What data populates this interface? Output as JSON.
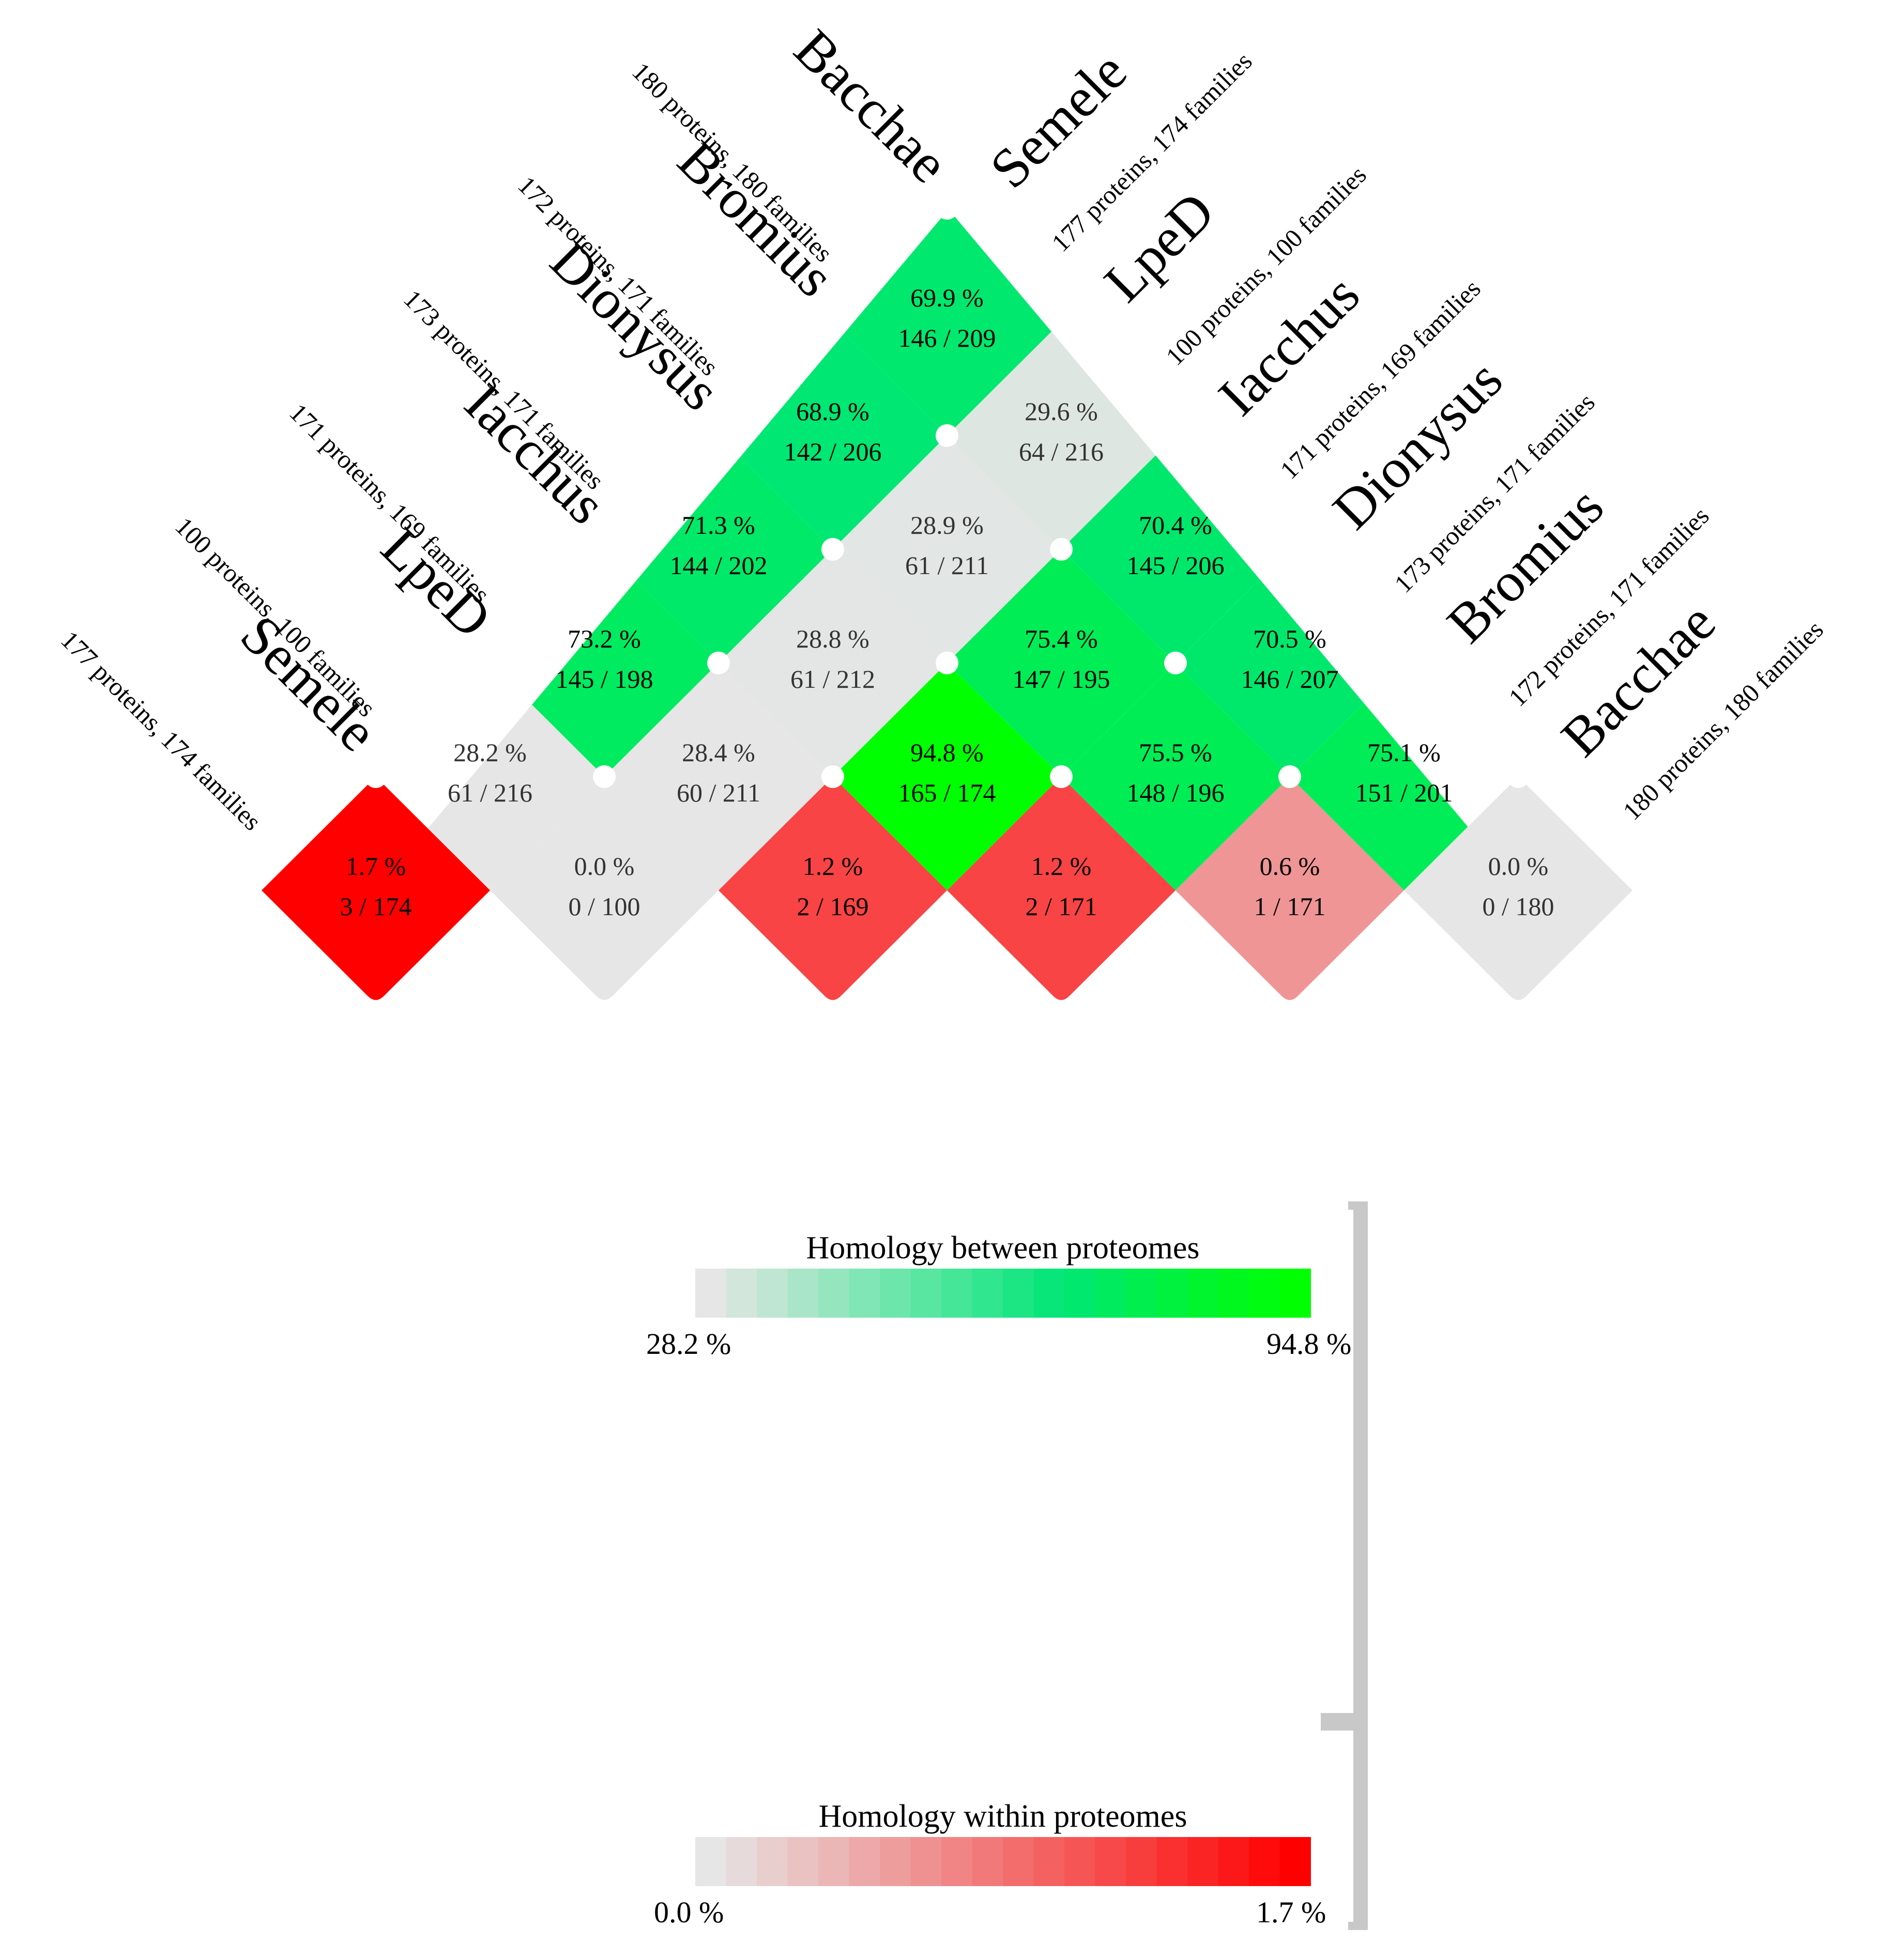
{
  "chart_data": {
    "type": "heatmap",
    "layout": "triangular-diamond-matrix",
    "taxa": [
      {
        "name": "Semele",
        "stats": "177 proteins, 174 families"
      },
      {
        "name": "LpeD",
        "stats": "100 proteins, 100 families"
      },
      {
        "name": "Iacchus",
        "stats": "171 proteins, 169 families"
      },
      {
        "name": "Dionysus",
        "stats": "173 proteins, 171 families"
      },
      {
        "name": "Bromius",
        "stats": "172 proteins, 171 families"
      },
      {
        "name": "Bacchae",
        "stats": "180 proteins, 180 families"
      }
    ],
    "within": [
      {
        "taxon": "Semele",
        "pct": "1.7 %",
        "frac": "3 / 174",
        "value": 1.7
      },
      {
        "taxon": "LpeD",
        "pct": "0.0 %",
        "frac": "0 / 100",
        "value": 0.0
      },
      {
        "taxon": "Iacchus",
        "pct": "1.2 %",
        "frac": "2 / 169",
        "value": 1.2
      },
      {
        "taxon": "Dionysus",
        "pct": "1.2 %",
        "frac": "2 / 171",
        "value": 1.2
      },
      {
        "taxon": "Bromius",
        "pct": "0.6 %",
        "frac": "1 / 171",
        "value": 0.6
      },
      {
        "taxon": "Bacchae",
        "pct": "0.0 %",
        "frac": "0 / 180",
        "value": 0.0
      }
    ],
    "between": [
      {
        "a": "Semele",
        "b": "LpeD",
        "pct": "28.2 %",
        "frac": "61 / 216",
        "value": 28.2
      },
      {
        "a": "Semele",
        "b": "Iacchus",
        "pct": "73.2 %",
        "frac": "145 / 198",
        "value": 73.2
      },
      {
        "a": "Semele",
        "b": "Dionysus",
        "pct": "71.3 %",
        "frac": "144 / 202",
        "value": 71.3
      },
      {
        "a": "Semele",
        "b": "Bromius",
        "pct": "68.9 %",
        "frac": "142 / 206",
        "value": 68.9
      },
      {
        "a": "Semele",
        "b": "Bacchae",
        "pct": "69.9 %",
        "frac": "146 / 209",
        "value": 69.9
      },
      {
        "a": "LpeD",
        "b": "Iacchus",
        "pct": "28.4 %",
        "frac": "60 / 211",
        "value": 28.4
      },
      {
        "a": "LpeD",
        "b": "Dionysus",
        "pct": "28.8 %",
        "frac": "61 / 212",
        "value": 28.8
      },
      {
        "a": "LpeD",
        "b": "Bromius",
        "pct": "28.9 %",
        "frac": "61 / 211",
        "value": 28.9
      },
      {
        "a": "LpeD",
        "b": "Bacchae",
        "pct": "29.6 %",
        "frac": "64 / 216",
        "value": 29.6
      },
      {
        "a": "Iacchus",
        "b": "Dionysus",
        "pct": "94.8 %",
        "frac": "165 / 174",
        "value": 94.8
      },
      {
        "a": "Iacchus",
        "b": "Bromius",
        "pct": "75.4 %",
        "frac": "147 / 195",
        "value": 75.4
      },
      {
        "a": "Iacchus",
        "b": "Bacchae",
        "pct": "70.4 %",
        "frac": "145 / 206",
        "value": 70.4
      },
      {
        "a": "Dionysus",
        "b": "Bromius",
        "pct": "75.5 %",
        "frac": "148 / 196",
        "value": 75.5
      },
      {
        "a": "Dionysus",
        "b": "Bacchae",
        "pct": "70.5 %",
        "frac": "146 / 207",
        "value": 70.5
      },
      {
        "a": "Bromius",
        "b": "Bacchae",
        "pct": "75.1 %",
        "frac": "151 / 201",
        "value": 75.1
      }
    ],
    "legends": [
      {
        "title": "Homology between proteomes",
        "min_label": "28.2 %",
        "max_label": "94.8 %",
        "min": 28.2,
        "max": 94.8,
        "color_low": "#e6e6e6",
        "color_mid": "#00e676",
        "color_high": "#00ff00"
      },
      {
        "title": "Homology within proteomes",
        "min_label": "0.0 %",
        "max_label": "1.7 %",
        "min": 0.0,
        "max": 1.7,
        "color_low": "#e6e6e6",
        "color_high": "#ff0000"
      }
    ],
    "colors": {
      "bracket": "#c8c8c8",
      "text": "#000000",
      "text_on_light": "#333333"
    }
  }
}
